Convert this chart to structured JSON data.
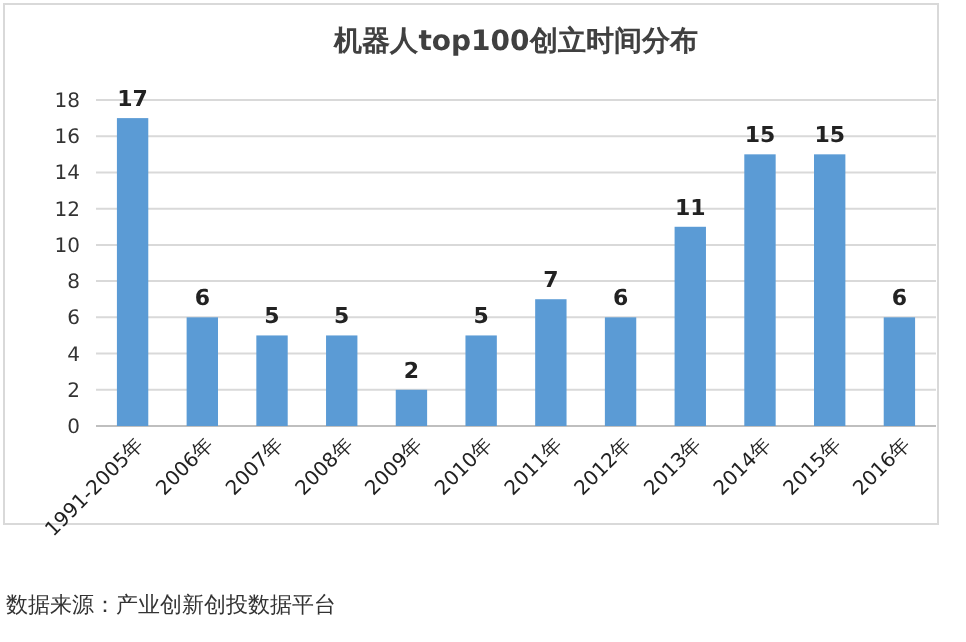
{
  "chart_data": {
    "type": "bar",
    "title": "机器人top100创立时间分布",
    "categories": [
      "1991-2005年",
      "2006年",
      "2007年",
      "2008年",
      "2009年",
      "2010年",
      "2011年",
      "2012年",
      "2013年",
      "2014年",
      "2015年",
      "2016年"
    ],
    "values": [
      17,
      6,
      5,
      5,
      2,
      5,
      7,
      6,
      11,
      15,
      15,
      6
    ],
    "color": "#5b9bd5",
    "ylim": [
      0,
      18
    ],
    "yticks": [
      0,
      2,
      4,
      6,
      8,
      10,
      12,
      14,
      16,
      18
    ],
    "grid": "y",
    "data_labels": true,
    "annotations": [
      "数据来源：产业创新创投数据平台"
    ]
  }
}
